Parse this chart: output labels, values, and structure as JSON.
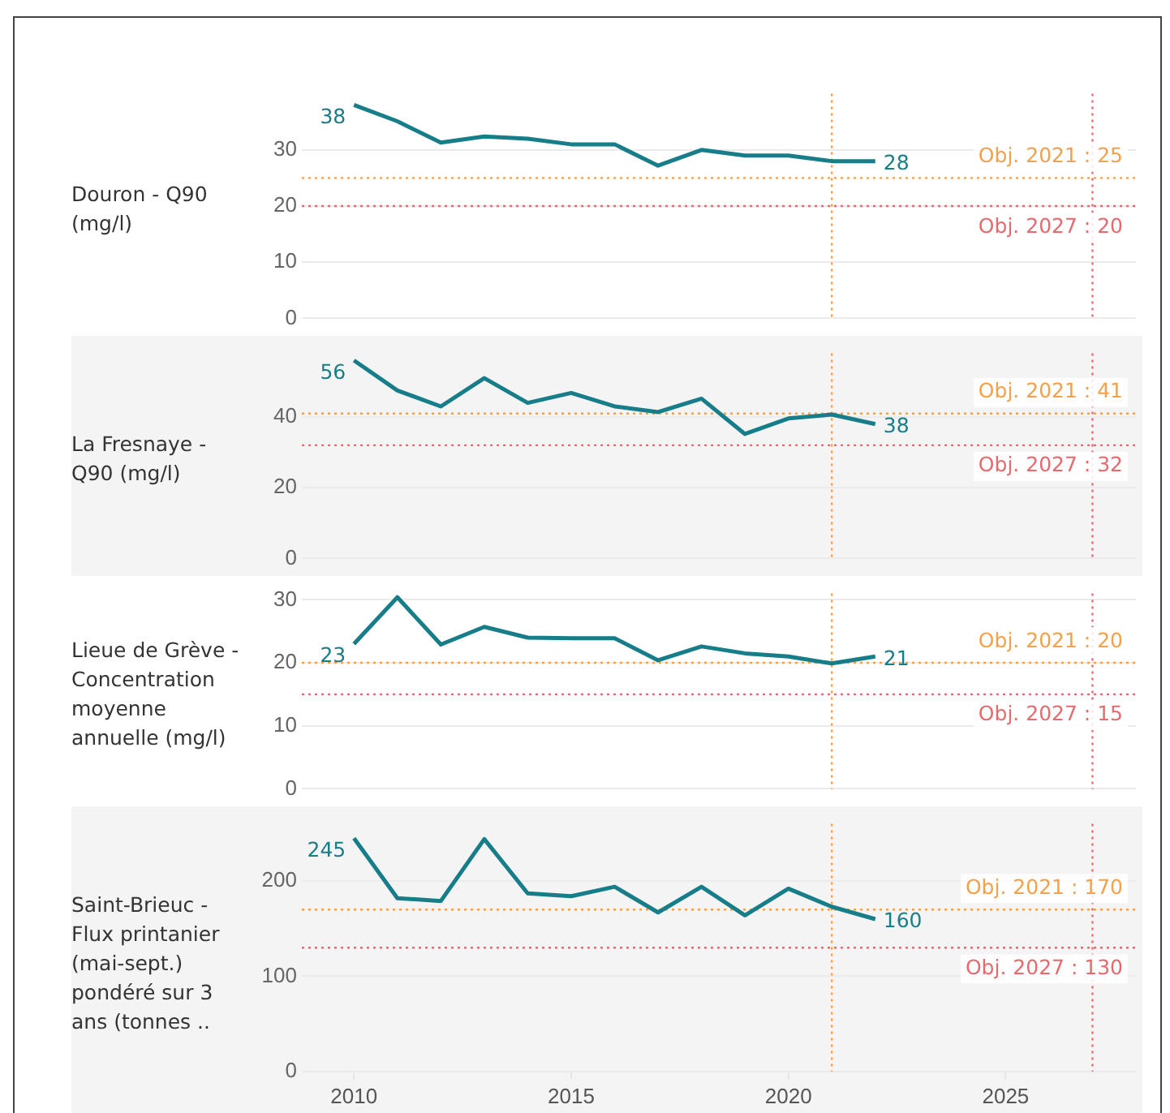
{
  "chart_data": [
    {
      "type": "line",
      "ylabel": "Douron - Q90 (mg/l)",
      "x": [
        2010,
        2011,
        2012,
        2013,
        2014,
        2015,
        2016,
        2017,
        2018,
        2019,
        2020,
        2021,
        2022
      ],
      "xlim": [
        2008.8,
        2028
      ],
      "ylim": [
        0,
        40
      ],
      "yticks": [
        0,
        10,
        20,
        30
      ],
      "grid": "y",
      "tick_labels": "y",
      "line_style": "solid",
      "marker": "none",
      "series": [
        {
          "color": "#177e89",
          "values": [
            38,
            35.1,
            31.3,
            32.4,
            32,
            31,
            31,
            27.2,
            30,
            29,
            29,
            28,
            28
          ],
          "value_labels": [
            "38",
            null,
            null,
            null,
            null,
            null,
            null,
            null,
            null,
            null,
            null,
            null,
            "28"
          ]
        }
      ],
      "ref_lines": [
        {
          "axis": "y",
          "value": 25,
          "label": "Obj. 2021 : 25",
          "color": "#f5a04a",
          "line_style": "dotted"
        },
        {
          "axis": "y",
          "value": 20,
          "label": "Obj. 2027 : 20",
          "color": "#e86a6f",
          "line_style": "dotted"
        },
        {
          "axis": "x",
          "value": 2021,
          "color": "#f5a04a",
          "line_style": "dotted"
        },
        {
          "axis": "x",
          "value": 2027,
          "color": "#e86a6f",
          "line_style": "dotted"
        }
      ]
    },
    {
      "type": "line",
      "ylabel": "La Fresnaye - Q90 (mg/l)",
      "x": [
        2010,
        2011,
        2012,
        2013,
        2014,
        2015,
        2016,
        2017,
        2018,
        2019,
        2020,
        2021,
        2022
      ],
      "xlim": [
        2008.8,
        2028
      ],
      "ylim": [
        0,
        58
      ],
      "yticks": [
        0,
        20,
        40
      ],
      "grid": "y",
      "tick_labels": "y",
      "line_style": "solid",
      "marker": "none",
      "series": [
        {
          "color": "#177e89",
          "values": [
            56,
            47.5,
            43,
            51,
            44,
            46.8,
            43,
            41.4,
            45.2,
            35.2,
            39.6,
            40.7,
            38
          ],
          "value_labels": [
            "56",
            null,
            null,
            null,
            null,
            null,
            null,
            null,
            null,
            null,
            null,
            null,
            "38"
          ]
        }
      ],
      "ref_lines": [
        {
          "axis": "y",
          "value": 41,
          "label": "Obj. 2021 : 41",
          "color": "#f5a04a",
          "line_style": "dotted"
        },
        {
          "axis": "y",
          "value": 32,
          "label": "Obj. 2027 : 32",
          "color": "#e86a6f",
          "line_style": "dotted"
        },
        {
          "axis": "x",
          "value": 2021,
          "color": "#f5a04a",
          "line_style": "dotted"
        },
        {
          "axis": "x",
          "value": 2027,
          "color": "#e86a6f",
          "line_style": "dotted"
        }
      ]
    },
    {
      "type": "line",
      "ylabel": "Lieue de Grève - Concentration moyenne annuelle (mg/l)",
      "x": [
        2010,
        2011,
        2012,
        2013,
        2014,
        2015,
        2016,
        2017,
        2018,
        2019,
        2020,
        2021,
        2022
      ],
      "xlim": [
        2008.8,
        2028
      ],
      "ylim": [
        0,
        31
      ],
      "yticks": [
        0,
        10,
        20,
        30
      ],
      "grid": "y",
      "tick_labels": "y",
      "line_style": "solid",
      "marker": "none",
      "series": [
        {
          "color": "#177e89",
          "values": [
            23,
            30.4,
            22.9,
            25.7,
            24,
            23.9,
            23.9,
            20.4,
            22.6,
            21.5,
            21,
            19.9,
            21
          ],
          "value_labels": [
            "23",
            null,
            null,
            null,
            null,
            null,
            null,
            null,
            null,
            null,
            null,
            null,
            "21"
          ]
        }
      ],
      "ref_lines": [
        {
          "axis": "y",
          "value": 20,
          "label": "Obj. 2021 : 20",
          "color": "#f5a04a",
          "line_style": "dotted"
        },
        {
          "axis": "y",
          "value": 15,
          "label": "Obj. 2027 : 15",
          "color": "#e86a6f",
          "line_style": "dotted"
        },
        {
          "axis": "x",
          "value": 2021,
          "color": "#f5a04a",
          "line_style": "dotted"
        },
        {
          "axis": "x",
          "value": 2027,
          "color": "#e86a6f",
          "line_style": "dotted"
        }
      ]
    },
    {
      "type": "line",
      "ylabel": "Saint-Brieuc - Flux printanier (mai-sept.) pondéré sur 3 ans (tonnes ..",
      "x": [
        2010,
        2011,
        2012,
        2013,
        2014,
        2015,
        2016,
        2017,
        2018,
        2019,
        2020,
        2021,
        2022
      ],
      "xlim": [
        2008.8,
        2028
      ],
      "xticks": [
        2010,
        2015,
        2020,
        2025
      ],
      "ylim": [
        0,
        260
      ],
      "yticks": [
        0,
        100,
        200
      ],
      "grid": "y",
      "line_style": "solid",
      "marker": "none",
      "series": [
        {
          "color": "#177e89",
          "values": [
            245,
            182,
            179,
            244,
            187,
            184,
            194,
            167,
            194,
            164,
            192,
            173,
            160
          ],
          "value_labels": [
            "245",
            null,
            null,
            null,
            null,
            null,
            null,
            null,
            null,
            null,
            null,
            null,
            "160"
          ]
        }
      ],
      "ref_lines": [
        {
          "axis": "y",
          "value": 170,
          "label": "Obj. 2021 : 170",
          "color": "#f5a04a",
          "line_style": "dotted"
        },
        {
          "axis": "y",
          "value": 130,
          "label": "Obj. 2027 : 130",
          "color": "#e86a6f",
          "line_style": "dotted"
        },
        {
          "axis": "x",
          "value": 2021,
          "color": "#f5a04a",
          "line_style": "dotted"
        },
        {
          "axis": "x",
          "value": 2027,
          "color": "#e86a6f",
          "line_style": "dotted"
        }
      ]
    }
  ]
}
